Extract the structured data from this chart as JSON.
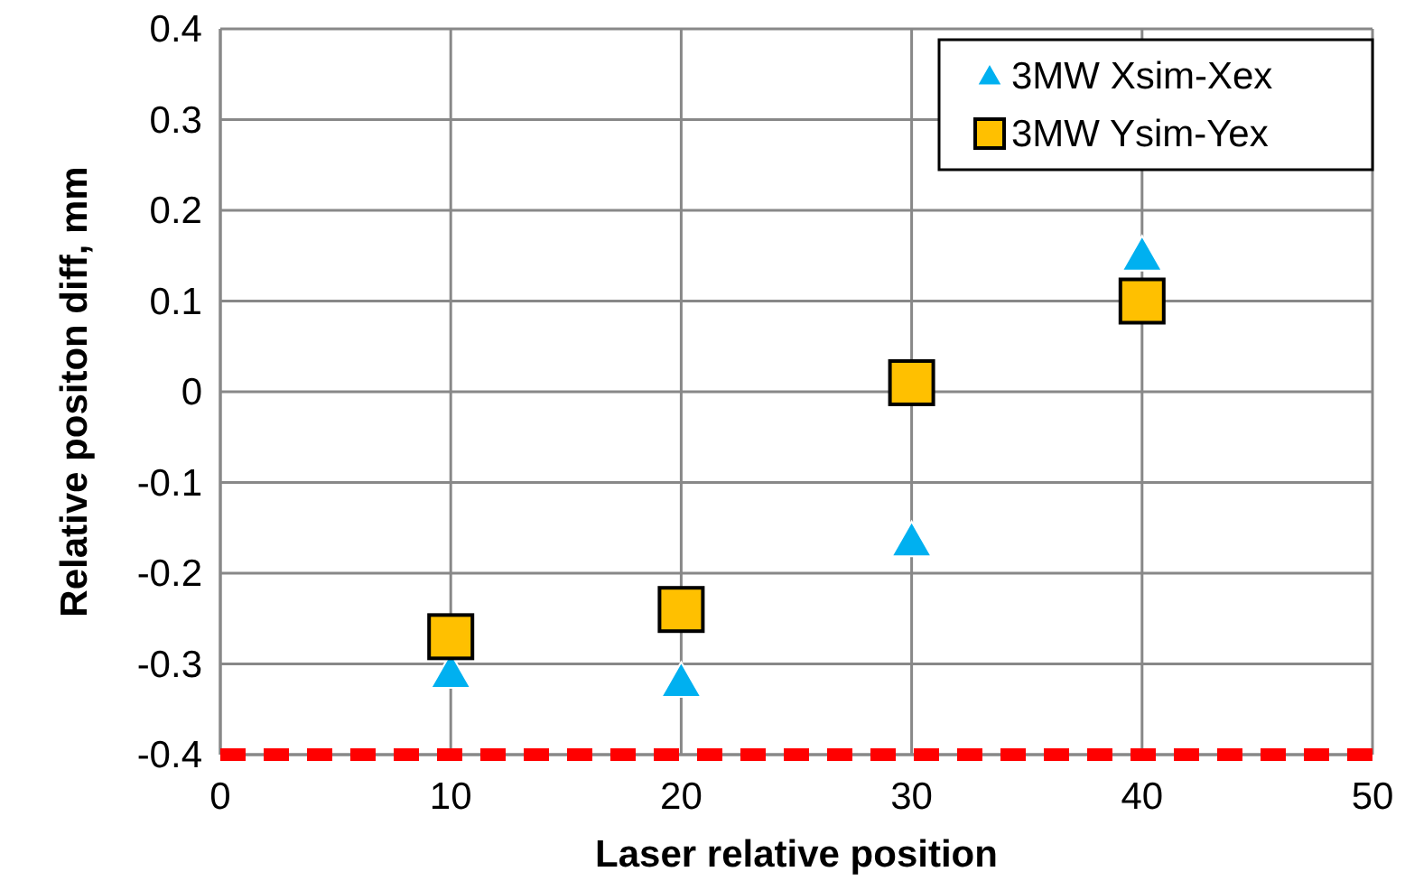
{
  "chart_data": {
    "type": "scatter",
    "xlabel": "Laser relative position",
    "ylabel": "Relative positon diff, mm",
    "x": [
      10,
      20,
      30,
      40
    ],
    "series": [
      {
        "name": "3MW Xsim-Xex",
        "color": "#00b0f0",
        "marker": "triangle",
        "values": [
          -0.31,
          -0.32,
          -0.165,
          0.15
        ]
      },
      {
        "name": "3MW Ysim-Yex",
        "color": "#ffc000",
        "marker": "square",
        "values": [
          -0.27,
          -0.24,
          0.01,
          0.1
        ]
      }
    ],
    "xlim": [
      0,
      50
    ],
    "xticks": [
      0,
      10,
      20,
      30,
      40,
      50
    ],
    "ylim": [
      -0.4,
      0.4
    ],
    "yticks": [
      -0.4,
      -0.3,
      -0.2,
      -0.1,
      0,
      0.1,
      0.2,
      0.3,
      0.4
    ],
    "ref_lines": [
      {
        "axis": "y",
        "value": -0.4,
        "color": "#ff0000",
        "line_style": "dashed"
      }
    ],
    "grid": true,
    "legend": "top right"
  }
}
